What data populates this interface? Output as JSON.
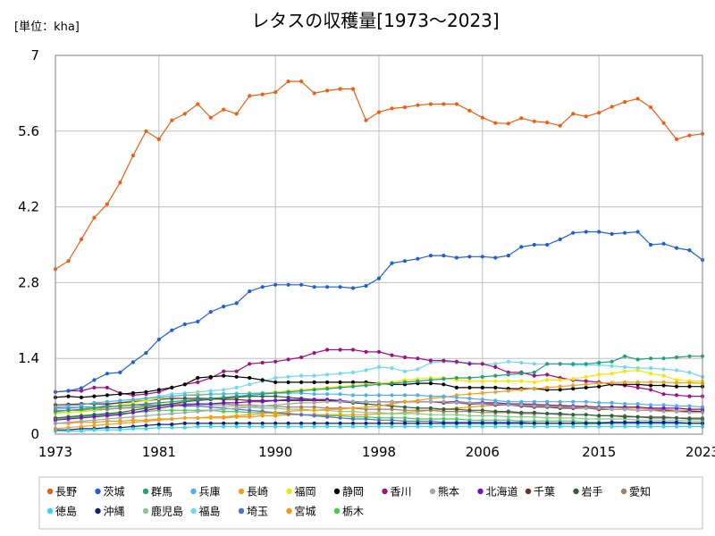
{
  "chart_data": {
    "type": "line",
    "title": "レタスの収穫量[1973～2023]",
    "unit_label": "[単位：kha]",
    "xlabel": "",
    "ylabel": "",
    "ylim": [
      0,
      7
    ],
    "xlim": [
      1973,
      2023
    ],
    "yticks": [
      "0",
      "1.4",
      "2.8",
      "4.2",
      "5.6",
      "7"
    ],
    "xticks": [
      "1973",
      "1981",
      "1990",
      "1998",
      "2006",
      "2015",
      "2023"
    ],
    "ytick_values": [
      0,
      1.4,
      2.8,
      4.2,
      5.6,
      7
    ],
    "xtick_values": [
      1973,
      1981,
      1990,
      1998,
      2006,
      2015,
      2023
    ],
    "grid": true,
    "legend_position": "bottom",
    "x": [
      1973,
      1974,
      1975,
      1976,
      1977,
      1978,
      1979,
      1980,
      1981,
      1982,
      1983,
      1984,
      1985,
      1986,
      1987,
      1988,
      1989,
      1990,
      1991,
      1992,
      1993,
      1994,
      1995,
      1996,
      1997,
      1998,
      1999,
      2000,
      2001,
      2002,
      2003,
      2004,
      2005,
      2006,
      2007,
      2008,
      2009,
      2010,
      2011,
      2012,
      2013,
      2014,
      2015,
      2016,
      2017,
      2018,
      2019,
      2020,
      2021,
      2022,
      2023
    ],
    "series": [
      {
        "name": "長野",
        "color": "#ED5E13",
        "values": [
          3.05,
          3.2,
          3.6,
          4.0,
          4.25,
          4.65,
          5.15,
          5.6,
          5.45,
          5.8,
          5.92,
          6.1,
          5.85,
          6.0,
          5.92,
          6.25,
          6.28,
          6.32,
          6.52,
          6.52,
          6.3,
          6.35,
          6.38,
          6.38,
          5.8,
          5.95,
          6.02,
          6.04,
          6.08,
          6.1,
          6.1,
          6.1,
          5.98,
          5.85,
          5.75,
          5.74,
          5.84,
          5.78,
          5.76,
          5.7,
          5.92,
          5.87,
          5.94,
          6.05,
          6.14,
          6.2,
          6.04,
          5.75,
          5.45,
          5.52,
          5.55
        ]
      },
      {
        "name": "茨城",
        "color": "#1F5FD6",
        "values": [
          0.78,
          0.8,
          0.85,
          1.0,
          1.12,
          1.14,
          1.33,
          1.5,
          1.75,
          1.92,
          2.03,
          2.08,
          2.26,
          2.36,
          2.42,
          2.64,
          2.72,
          2.76,
          2.76,
          2.76,
          2.72,
          2.72,
          2.72,
          2.7,
          2.74,
          2.88,
          3.16,
          3.2,
          3.24,
          3.3,
          3.3,
          3.26,
          3.28,
          3.28,
          3.26,
          3.3,
          3.46,
          3.5,
          3.5,
          3.6,
          3.72,
          3.74,
          3.74,
          3.7,
          3.72,
          3.74,
          3.5,
          3.52,
          3.44,
          3.4,
          3.22
        ]
      },
      {
        "name": "群馬",
        "color": "#20A07A",
        "values": [
          0.42,
          0.44,
          0.46,
          0.48,
          0.5,
          0.52,
          0.54,
          0.56,
          0.58,
          0.6,
          0.62,
          0.64,
          0.66,
          0.68,
          0.7,
          0.72,
          0.74,
          0.76,
          0.78,
          0.8,
          0.82,
          0.84,
          0.86,
          0.88,
          0.9,
          0.92,
          0.94,
          0.96,
          0.98,
          1.0,
          1.02,
          1.04,
          1.04,
          1.06,
          1.08,
          1.1,
          1.12,
          1.14,
          1.3,
          1.3,
          1.3,
          1.3,
          1.32,
          1.34,
          1.44,
          1.38,
          1.4,
          1.4,
          1.42,
          1.44,
          1.44
        ]
      },
      {
        "name": "兵庫",
        "color": "#4FB0E8",
        "values": [
          0.5,
          0.52,
          0.54,
          0.58,
          0.6,
          0.62,
          0.64,
          0.66,
          0.68,
          0.7,
          0.72,
          0.72,
          0.74,
          0.74,
          0.75,
          0.75,
          0.76,
          0.76,
          0.76,
          0.76,
          0.74,
          0.74,
          0.74,
          0.72,
          0.72,
          0.72,
          0.72,
          0.72,
          0.72,
          0.7,
          0.7,
          0.68,
          0.66,
          0.64,
          0.62,
          0.6,
          0.6,
          0.6,
          0.6,
          0.6,
          0.6,
          0.6,
          0.58,
          0.58,
          0.56,
          0.56,
          0.54,
          0.54,
          0.52,
          0.52,
          0.5
        ]
      },
      {
        "name": "長崎",
        "color": "#F0A020",
        "values": [
          0.1,
          0.12,
          0.14,
          0.16,
          0.18,
          0.2,
          0.22,
          0.24,
          0.26,
          0.28,
          0.3,
          0.3,
          0.32,
          0.32,
          0.34,
          0.36,
          0.38,
          0.4,
          0.42,
          0.44,
          0.44,
          0.46,
          0.46,
          0.48,
          0.5,
          0.52,
          0.56,
          0.6,
          0.62,
          0.66,
          0.68,
          0.72,
          0.74,
          0.76,
          0.78,
          0.8,
          0.82,
          0.84,
          0.86,
          0.88,
          0.9,
          0.92,
          0.94,
          0.95,
          0.96,
          0.96,
          0.96,
          0.96,
          0.95,
          0.95,
          0.94
        ]
      },
      {
        "name": "福岡",
        "color": "#F5E600",
        "values": [
          0.38,
          0.4,
          0.42,
          0.46,
          0.5,
          0.54,
          0.58,
          0.62,
          0.66,
          0.7,
          0.72,
          0.74,
          0.74,
          0.75,
          0.75,
          0.76,
          0.76,
          0.78,
          0.8,
          0.82,
          0.84,
          0.86,
          0.88,
          0.9,
          0.92,
          0.94,
          0.96,
          1.0,
          1.02,
          1.04,
          1.04,
          1.0,
          0.98,
          0.98,
          0.98,
          0.98,
          0.98,
          0.96,
          1.0,
          1.0,
          1.02,
          1.06,
          1.1,
          1.12,
          1.16,
          1.18,
          1.12,
          1.08,
          1.0,
          0.98,
          0.98
        ]
      },
      {
        "name": "静岡",
        "color": "#000000",
        "values": [
          0.68,
          0.7,
          0.68,
          0.7,
          0.72,
          0.74,
          0.76,
          0.78,
          0.82,
          0.86,
          0.92,
          1.04,
          1.06,
          1.08,
          1.06,
          1.04,
          1.0,
          0.96,
          0.96,
          0.96,
          0.96,
          0.96,
          0.96,
          0.96,
          0.96,
          0.94,
          0.92,
          0.92,
          0.94,
          0.94,
          0.92,
          0.86,
          0.86,
          0.86,
          0.86,
          0.84,
          0.84,
          0.84,
          0.82,
          0.82,
          0.84,
          0.86,
          0.88,
          0.92,
          0.92,
          0.92,
          0.9,
          0.9,
          0.88,
          0.88,
          0.88
        ]
      },
      {
        "name": "香川",
        "color": "#A01080",
        "values": [
          0.78,
          0.8,
          0.8,
          0.86,
          0.86,
          0.76,
          0.72,
          0.74,
          0.78,
          0.86,
          0.92,
          0.96,
          1.04,
          1.16,
          1.16,
          1.3,
          1.32,
          1.34,
          1.38,
          1.42,
          1.5,
          1.56,
          1.56,
          1.56,
          1.52,
          1.52,
          1.46,
          1.42,
          1.4,
          1.36,
          1.36,
          1.34,
          1.3,
          1.3,
          1.24,
          1.14,
          1.14,
          1.08,
          1.1,
          1.04,
          1.0,
          0.98,
          0.96,
          0.92,
          0.9,
          0.86,
          0.82,
          0.74,
          0.72,
          0.7,
          0.7
        ]
      },
      {
        "name": "熊本",
        "color": "#A0A8B0",
        "values": [
          0.2,
          0.22,
          0.24,
          0.26,
          0.28,
          0.3,
          0.32,
          0.34,
          0.36,
          0.38,
          0.4,
          0.42,
          0.44,
          0.46,
          0.48,
          0.5,
          0.52,
          0.54,
          0.56,
          0.58,
          0.58,
          0.6,
          0.6,
          0.6,
          0.6,
          0.6,
          0.6,
          0.6,
          0.6,
          0.6,
          0.6,
          0.58,
          0.58,
          0.56,
          0.56,
          0.54,
          0.54,
          0.52,
          0.52,
          0.5,
          0.5,
          0.48,
          0.48,
          0.46,
          0.46,
          0.44,
          0.44,
          0.42,
          0.42,
          0.4,
          0.4
        ]
      },
      {
        "name": "北海道",
        "color": "#7010D0",
        "values": [
          0.26,
          0.28,
          0.3,
          0.32,
          0.34,
          0.36,
          0.4,
          0.44,
          0.48,
          0.52,
          0.54,
          0.56,
          0.56,
          0.58,
          0.58,
          0.6,
          0.6,
          0.62,
          0.64,
          0.64,
          0.64,
          0.64,
          0.62,
          0.6,
          0.6,
          0.6,
          0.6,
          0.6,
          0.6,
          0.6,
          0.6,
          0.6,
          0.58,
          0.58,
          0.58,
          0.56,
          0.56,
          0.54,
          0.54,
          0.52,
          0.52,
          0.5,
          0.5,
          0.5,
          0.5,
          0.5,
          0.48,
          0.48,
          0.48,
          0.46,
          0.46
        ]
      },
      {
        "name": "千葉",
        "color": "#6B3020",
        "values": [
          0.54,
          0.55,
          0.56,
          0.56,
          0.56,
          0.58,
          0.6,
          0.62,
          0.64,
          0.66,
          0.66,
          0.66,
          0.66,
          0.64,
          0.64,
          0.62,
          0.62,
          0.62,
          0.62,
          0.62,
          0.62,
          0.62,
          0.6,
          0.6,
          0.6,
          0.6,
          0.6,
          0.6,
          0.6,
          0.6,
          0.58,
          0.58,
          0.56,
          0.56,
          0.54,
          0.54,
          0.52,
          0.5,
          0.5,
          0.48,
          0.48,
          0.48,
          0.46,
          0.46,
          0.46,
          0.44,
          0.44,
          0.44,
          0.42,
          0.42,
          0.42
        ]
      },
      {
        "name": "岩手",
        "color": "#2F6040",
        "values": [
          0.3,
          0.32,
          0.34,
          0.36,
          0.38,
          0.4,
          0.44,
          0.48,
          0.52,
          0.56,
          0.6,
          0.62,
          0.64,
          0.66,
          0.68,
          0.7,
          0.7,
          0.7,
          0.68,
          0.66,
          0.64,
          0.62,
          0.6,
          0.58,
          0.56,
          0.54,
          0.52,
          0.5,
          0.48,
          0.48,
          0.46,
          0.46,
          0.44,
          0.44,
          0.42,
          0.42,
          0.4,
          0.4,
          0.38,
          0.38,
          0.36,
          0.36,
          0.34,
          0.34,
          0.32,
          0.32,
          0.3,
          0.3,
          0.3,
          0.28,
          0.28
        ]
      },
      {
        "name": "愛知",
        "color": "#A08060",
        "values": [
          0.44,
          0.44,
          0.44,
          0.46,
          0.46,
          0.48,
          0.5,
          0.52,
          0.54,
          0.56,
          0.56,
          0.56,
          0.56,
          0.56,
          0.54,
          0.54,
          0.52,
          0.52,
          0.5,
          0.5,
          0.5,
          0.48,
          0.48,
          0.48,
          0.46,
          0.46,
          0.46,
          0.44,
          0.44,
          0.44,
          0.42,
          0.42,
          0.42,
          0.4,
          0.4,
          0.4,
          0.38,
          0.38,
          0.38,
          0.36,
          0.36,
          0.36,
          0.34,
          0.34,
          0.34,
          0.32,
          0.32,
          0.32,
          0.3,
          0.3,
          0.3
        ]
      },
      {
        "name": "徳島",
        "color": "#30D8E8",
        "values": [
          0.06,
          0.06,
          0.06,
          0.08,
          0.08,
          0.08,
          0.1,
          0.1,
          0.12,
          0.12,
          0.12,
          0.14,
          0.14,
          0.14,
          0.14,
          0.14,
          0.14,
          0.14,
          0.14,
          0.14,
          0.14,
          0.14,
          0.14,
          0.14,
          0.14,
          0.14,
          0.14,
          0.14,
          0.14,
          0.14,
          0.14,
          0.14,
          0.14,
          0.14,
          0.14,
          0.14,
          0.14,
          0.14,
          0.14,
          0.14,
          0.14,
          0.14,
          0.14,
          0.14,
          0.14,
          0.14,
          0.14,
          0.14,
          0.14,
          0.14,
          0.14
        ]
      },
      {
        "name": "沖縄",
        "color": "#102080",
        "values": [
          0.08,
          0.08,
          0.1,
          0.1,
          0.12,
          0.12,
          0.14,
          0.16,
          0.18,
          0.18,
          0.2,
          0.2,
          0.2,
          0.2,
          0.2,
          0.2,
          0.2,
          0.2,
          0.2,
          0.2,
          0.2,
          0.2,
          0.2,
          0.2,
          0.2,
          0.2,
          0.2,
          0.2,
          0.2,
          0.2,
          0.2,
          0.2,
          0.2,
          0.2,
          0.2,
          0.2,
          0.2,
          0.2,
          0.2,
          0.2,
          0.2,
          0.2,
          0.2,
          0.22,
          0.22,
          0.22,
          0.22,
          0.22,
          0.22,
          0.2,
          0.2
        ]
      },
      {
        "name": "鹿児島",
        "color": "#8CC890",
        "values": [
          0.4,
          0.4,
          0.42,
          0.44,
          0.46,
          0.48,
          0.48,
          0.5,
          0.52,
          0.54,
          0.54,
          0.54,
          0.54,
          0.52,
          0.52,
          0.5,
          0.48,
          0.48,
          0.46,
          0.46,
          0.44,
          0.44,
          0.42,
          0.42,
          0.4,
          0.4,
          0.38,
          0.38,
          0.38,
          0.36,
          0.36,
          0.36,
          0.34,
          0.34,
          0.34,
          0.32,
          0.32,
          0.32,
          0.3,
          0.3,
          0.3,
          0.28,
          0.28,
          0.28,
          0.28,
          0.26,
          0.26,
          0.26,
          0.26,
          0.24,
          0.24
        ]
      },
      {
        "name": "福島",
        "color": "#70D8F0",
        "values": [
          0.42,
          0.44,
          0.46,
          0.5,
          0.54,
          0.58,
          0.62,
          0.66,
          0.7,
          0.74,
          0.76,
          0.78,
          0.8,
          0.82,
          0.86,
          0.92,
          0.98,
          1.04,
          1.06,
          1.08,
          1.08,
          1.1,
          1.12,
          1.14,
          1.18,
          1.24,
          1.22,
          1.16,
          1.2,
          1.32,
          1.34,
          1.32,
          1.32,
          1.3,
          1.3,
          1.34,
          1.32,
          1.3,
          1.3,
          1.3,
          1.28,
          1.28,
          1.28,
          1.26,
          1.24,
          1.22,
          1.22,
          1.2,
          1.18,
          1.14,
          1.06
        ]
      },
      {
        "name": "埼玉",
        "color": "#4A6FD8",
        "values": [
          0.48,
          0.48,
          0.5,
          0.5,
          0.52,
          0.52,
          0.54,
          0.54,
          0.54,
          0.54,
          0.52,
          0.52,
          0.5,
          0.48,
          0.46,
          0.44,
          0.42,
          0.4,
          0.38,
          0.36,
          0.34,
          0.32,
          0.3,
          0.28,
          0.28,
          0.26,
          0.26,
          0.24,
          0.24,
          0.24,
          0.22,
          0.22,
          0.22,
          0.22,
          0.22,
          0.22,
          0.22,
          0.2,
          0.2,
          0.2,
          0.2,
          0.2,
          0.2,
          0.2,
          0.2,
          0.2,
          0.2,
          0.2,
          0.2,
          0.2,
          0.2
        ]
      },
      {
        "name": "宮城",
        "color": "#F09A10",
        "values": [
          0.2,
          0.2,
          0.22,
          0.22,
          0.24,
          0.24,
          0.26,
          0.26,
          0.28,
          0.28,
          0.3,
          0.3,
          0.3,
          0.3,
          0.32,
          0.32,
          0.34,
          0.34,
          0.36,
          0.36,
          0.36,
          0.36,
          0.36,
          0.36,
          0.36,
          0.38,
          0.38,
          0.4,
          0.42,
          0.44,
          0.46,
          0.48,
          0.5,
          0.52,
          0.54,
          0.56,
          0.56,
          0.56,
          0.54,
          0.54,
          0.52,
          0.52,
          0.5,
          0.5,
          0.48,
          0.48,
          0.46,
          0.46,
          0.44,
          0.44,
          0.42
        ]
      },
      {
        "name": "栃木",
        "color": "#40D040",
        "values": [
          0.28,
          0.3,
          0.32,
          0.34,
          0.36,
          0.38,
          0.4,
          0.42,
          0.44,
          0.44,
          0.44,
          0.44,
          0.44,
          0.42,
          0.42,
          0.4,
          0.4,
          0.38,
          0.38,
          0.36,
          0.36,
          0.34,
          0.34,
          0.32,
          0.32,
          0.3,
          0.3,
          0.3,
          0.28,
          0.28,
          0.28,
          0.28,
          0.26,
          0.26,
          0.26,
          0.26,
          0.24,
          0.24,
          0.24,
          0.24,
          0.24,
          0.22,
          0.22,
          0.22,
          0.22,
          0.22,
          0.22,
          0.2,
          0.2,
          0.2,
          0.2
        ]
      }
    ]
  }
}
